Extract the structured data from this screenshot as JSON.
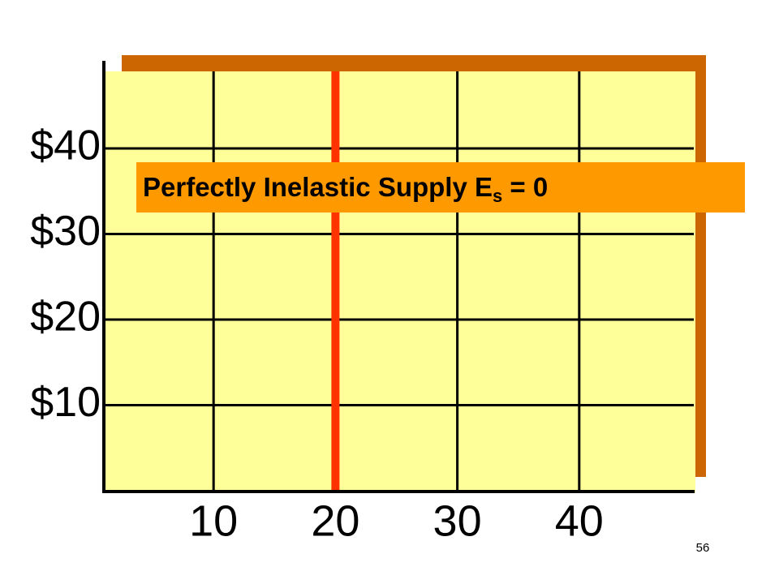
{
  "chart_data": {
    "type": "line",
    "xlim": [
      1,
      49.4
    ],
    "xticks": [
      10,
      20,
      30,
      40
    ],
    "ylim": [
      0,
      49
    ],
    "yticks": [
      {
        "value": 10,
        "label": "$10"
      },
      {
        "value": 20,
        "label": "$20"
      },
      {
        "value": 30,
        "label": "$30"
      },
      {
        "value": 40,
        "label": "$40"
      }
    ],
    "grid": true,
    "series": [
      {
        "color": "#ff3300",
        "x": [
          20,
          20
        ],
        "values": [
          0,
          49
        ]
      }
    ],
    "annotation": {
      "text": "Perfectly Inelastic Supply E",
      "subscript": "s",
      "suffix": " = 0"
    },
    "page_number": "56"
  }
}
